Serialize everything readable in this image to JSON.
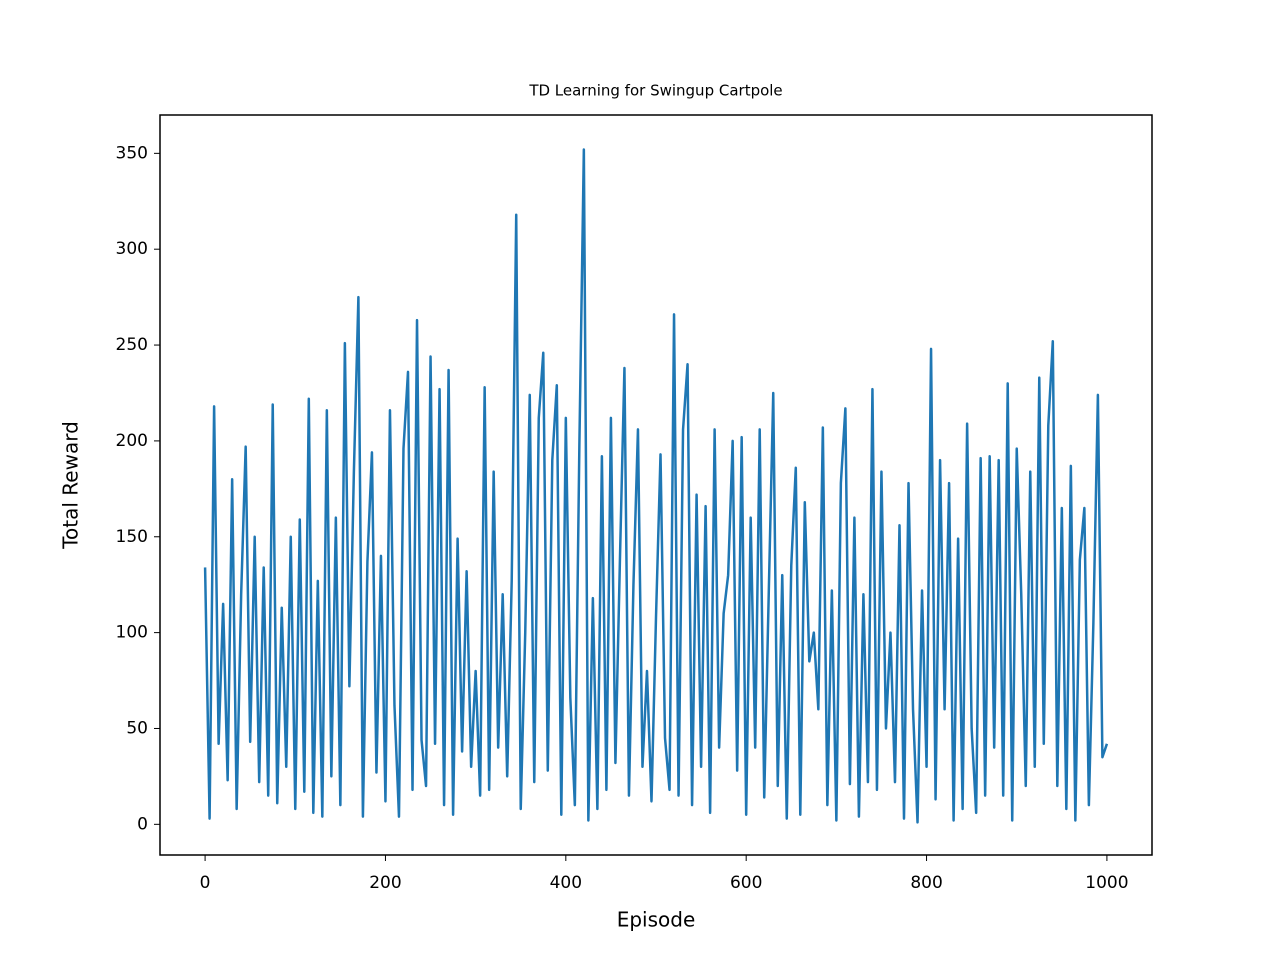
{
  "chart_data": {
    "type": "line",
    "title": "TD Learning for Swingup Cartpole",
    "x_label": "Episode",
    "y_label": "Total Reward",
    "x": [
      0,
      5,
      10,
      15,
      20,
      25,
      30,
      35,
      40,
      45,
      50,
      55,
      60,
      65,
      70,
      75,
      80,
      85,
      90,
      95,
      100,
      105,
      110,
      115,
      120,
      125,
      130,
      135,
      140,
      145,
      150,
      155,
      160,
      165,
      170,
      175,
      180,
      185,
      190,
      195,
      200,
      205,
      210,
      215,
      220,
      225,
      230,
      235,
      240,
      245,
      250,
      255,
      260,
      265,
      270,
      275,
      280,
      285,
      290,
      295,
      300,
      305,
      310,
      315,
      320,
      325,
      330,
      335,
      340,
      345,
      350,
      355,
      360,
      365,
      370,
      375,
      380,
      385,
      390,
      395,
      400,
      405,
      410,
      415,
      420,
      425,
      430,
      435,
      440,
      445,
      450,
      455,
      460,
      465,
      470,
      475,
      480,
      485,
      490,
      495,
      500,
      505,
      510,
      515,
      520,
      525,
      530,
      535,
      540,
      545,
      550,
      555,
      560,
      565,
      570,
      575,
      580,
      585,
      590,
      595,
      600,
      605,
      610,
      615,
      620,
      625,
      630,
      635,
      640,
      645,
      650,
      655,
      660,
      665,
      670,
      675,
      680,
      685,
      690,
      695,
      700,
      705,
      710,
      715,
      720,
      725,
      730,
      735,
      740,
      745,
      750,
      755,
      760,
      765,
      770,
      775,
      780,
      785,
      790,
      795,
      800,
      805,
      810,
      815,
      820,
      825,
      830,
      835,
      840,
      845,
      850,
      855,
      860,
      865,
      870,
      875,
      880,
      885,
      890,
      895,
      900,
      905,
      910,
      915,
      920,
      925,
      930,
      935,
      940,
      945,
      950,
      955,
      960,
      965,
      970,
      975,
      980,
      985,
      990,
      995,
      1000
    ],
    "series": [
      {
        "name": "Total Reward",
        "color": "#1f77b4",
        "values": [
          134,
          3,
          218,
          42,
          115,
          23,
          180,
          8,
          120,
          197,
          43,
          150,
          22,
          134,
          15,
          219,
          11,
          113,
          30,
          150,
          8,
          159,
          17,
          222,
          6,
          127,
          4,
          216,
          25,
          160,
          10,
          251,
          72,
          184,
          275,
          4,
          137,
          194,
          27,
          140,
          12,
          216,
          62,
          4,
          196,
          236,
          18,
          263,
          44,
          20,
          244,
          42,
          227,
          10,
          237,
          5,
          149,
          38,
          132,
          30,
          80,
          15,
          228,
          18,
          184,
          40,
          120,
          25,
          127,
          318,
          8,
          100,
          224,
          22,
          212,
          246,
          28,
          190,
          229,
          5,
          212,
          66,
          10,
          197,
          352,
          2,
          118,
          8,
          192,
          18,
          212,
          32,
          138,
          238,
          15,
          125,
          206,
          30,
          80,
          12,
          108,
          193,
          45,
          18,
          266,
          15,
          206,
          240,
          10,
          172,
          30,
          166,
          6,
          206,
          40,
          110,
          130,
          200,
          28,
          202,
          5,
          160,
          40,
          206,
          14,
          120,
          225,
          20,
          130,
          3,
          135,
          186,
          5,
          168,
          85,
          100,
          60,
          207,
          10,
          122,
          2,
          178,
          217,
          21,
          160,
          4,
          120,
          22,
          227,
          18,
          184,
          50,
          100,
          22,
          156,
          3,
          178,
          60,
          1,
          122,
          30,
          248,
          13,
          190,
          60,
          178,
          2,
          149,
          8,
          209,
          50,
          6,
          191,
          15,
          192,
          40,
          190,
          15,
          230,
          2,
          196,
          120,
          20,
          184,
          30,
          233,
          42,
          208,
          252,
          20,
          165,
          8,
          187,
          2,
          138,
          165,
          10,
          105,
          224,
          35,
          42
        ]
      }
    ],
    "xlim": [
      -50,
      1050
    ],
    "ylim": [
      -16,
      370
    ],
    "xticks": [
      0,
      200,
      400,
      600,
      800,
      1000
    ],
    "yticks": [
      0,
      50,
      100,
      150,
      200,
      250,
      300,
      350
    ]
  }
}
